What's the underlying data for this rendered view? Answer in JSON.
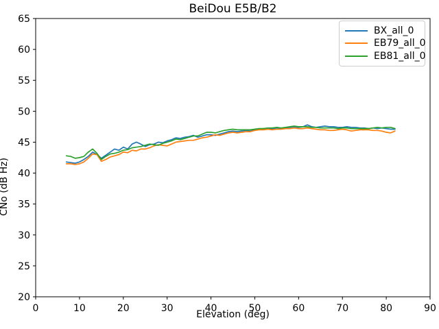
{
  "chart_data": {
    "type": "line",
    "title": "BeiDou E5B/B2",
    "xlabel": "Elevation (deg)",
    "ylabel": "CNo (dB Hz)",
    "xlim": [
      0,
      90
    ],
    "ylim": [
      20,
      65
    ],
    "xticks": [
      0,
      10,
      20,
      30,
      40,
      50,
      60,
      70,
      80,
      90
    ],
    "yticks": [
      20,
      25,
      30,
      35,
      40,
      45,
      50,
      55,
      60,
      65
    ],
    "grid": false,
    "legend_position": "upper right",
    "x": [
      7,
      8,
      9,
      10,
      11,
      12,
      13,
      14,
      15,
      16,
      17,
      18,
      19,
      20,
      21,
      22,
      23,
      24,
      25,
      26,
      27,
      28,
      29,
      30,
      31,
      32,
      33,
      34,
      35,
      36,
      37,
      38,
      39,
      40,
      41,
      42,
      43,
      44,
      45,
      46,
      47,
      48,
      49,
      50,
      51,
      52,
      53,
      54,
      55,
      56,
      57,
      58,
      59,
      60,
      61,
      62,
      63,
      64,
      65,
      66,
      67,
      68,
      69,
      70,
      71,
      72,
      73,
      74,
      75,
      76,
      77,
      78,
      79,
      80,
      81,
      82
    ],
    "series": [
      {
        "name": "BX_all_0",
        "color": "#1f77b4",
        "values": [
          41.8,
          41.7,
          41.6,
          41.8,
          42.2,
          42.7,
          43.4,
          43.0,
          42.4,
          42.9,
          43.4,
          43.9,
          43.7,
          44.2,
          43.9,
          44.7,
          45.0,
          44.7,
          44.3,
          44.6,
          44.7,
          45.0,
          44.9,
          45.2,
          45.4,
          45.7,
          45.6,
          45.8,
          45.9,
          46.1,
          45.8,
          46.0,
          46.2,
          46.2,
          46.1,
          46.3,
          46.5,
          46.7,
          46.8,
          46.7,
          46.8,
          46.9,
          46.8,
          47.0,
          47.1,
          47.2,
          47.1,
          47.2,
          47.3,
          47.2,
          47.3,
          47.4,
          47.5,
          47.4,
          47.5,
          47.8,
          47.5,
          47.4,
          47.5,
          47.6,
          47.5,
          47.5,
          47.4,
          47.4,
          47.5,
          47.4,
          47.4,
          47.3,
          47.3,
          47.2,
          47.3,
          47.2,
          47.3,
          47.2,
          47.1,
          47.1
        ]
      },
      {
        "name": "EB79_all_0",
        "color": "#ff7f0e",
        "values": [
          41.5,
          41.5,
          41.4,
          41.5,
          41.8,
          42.4,
          43.1,
          43.0,
          41.9,
          42.2,
          42.6,
          42.8,
          43.0,
          43.4,
          43.3,
          43.7,
          43.6,
          43.9,
          43.9,
          44.1,
          44.4,
          44.6,
          44.5,
          44.4,
          44.7,
          45.0,
          45.1,
          45.2,
          45.3,
          45.3,
          45.5,
          45.7,
          45.8,
          46.0,
          46.2,
          46.1,
          46.3,
          46.5,
          46.6,
          46.5,
          46.6,
          46.7,
          46.7,
          46.9,
          47.0,
          47.0,
          47.1,
          47.0,
          47.1,
          47.1,
          47.2,
          47.2,
          47.3,
          47.2,
          47.2,
          47.3,
          47.2,
          47.1,
          47.0,
          47.0,
          46.9,
          46.9,
          47.0,
          47.1,
          47.0,
          46.8,
          46.9,
          47.0,
          47.0,
          47.0,
          46.9,
          46.9,
          46.8,
          46.6,
          46.5,
          46.8
        ]
      },
      {
        "name": "EB81_all_0",
        "color": "#2ca02c",
        "values": [
          42.8,
          42.7,
          42.4,
          42.5,
          42.7,
          43.4,
          43.9,
          43.2,
          42.2,
          42.7,
          43.1,
          43.2,
          43.4,
          43.7,
          43.8,
          44.1,
          44.2,
          44.3,
          44.5,
          44.7,
          44.6,
          44.5,
          44.8,
          45.0,
          45.2,
          45.5,
          45.4,
          45.6,
          45.8,
          46.0,
          46.0,
          46.3,
          46.6,
          46.6,
          46.5,
          46.7,
          46.9,
          47.0,
          47.1,
          47.0,
          47.0,
          47.0,
          47.0,
          47.1,
          47.2,
          47.2,
          47.3,
          47.3,
          47.4,
          47.3,
          47.4,
          47.5,
          47.6,
          47.5,
          47.5,
          47.5,
          47.4,
          47.4,
          47.3,
          47.3,
          47.3,
          47.3,
          47.2,
          47.3,
          47.3,
          47.2,
          47.2,
          47.2,
          47.2,
          47.2,
          47.3,
          47.4,
          47.3,
          47.4,
          47.4,
          47.2
        ]
      }
    ]
  }
}
